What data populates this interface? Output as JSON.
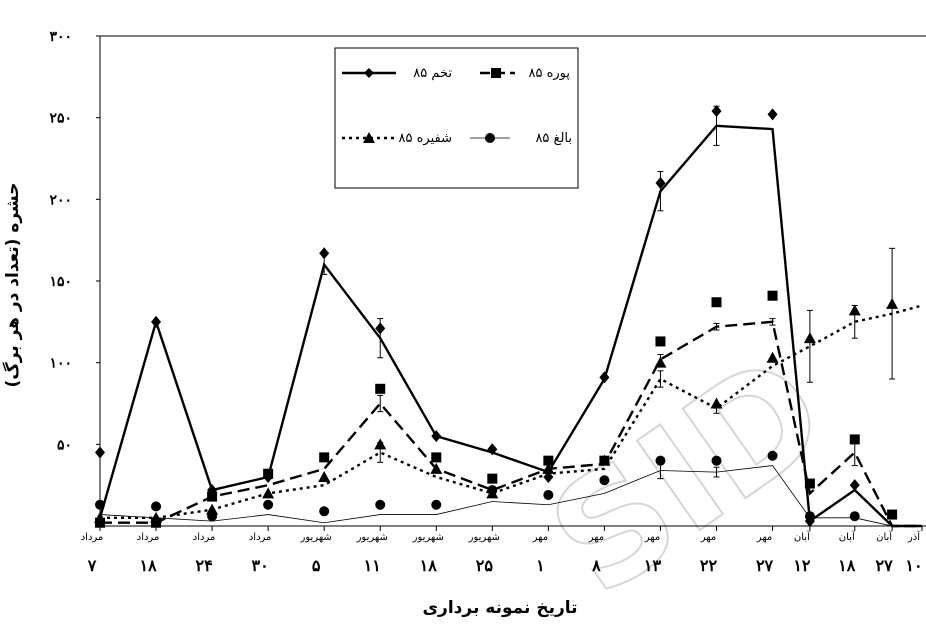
{
  "chart_data": {
    "type": "line",
    "title": "",
    "ylabel": "حشره (تعداد در هر برگ)",
    "xlabel": "تاریخ نمونه برداری",
    "ylim": [
      0,
      300
    ],
    "yticks": [
      0,
      50,
      100,
      150,
      200,
      250,
      300
    ],
    "ytick_labels": [
      "",
      "۵۰",
      "۱۰۰",
      "۱۵۰",
      "۲۰۰",
      "۲۵۰",
      "۳۰۰"
    ],
    "xlim": [
      0,
      22
    ],
    "x_tick_labels": [
      {
        "x": 0,
        "month": "مرداد",
        "day": "۷"
      },
      {
        "x": 1.5,
        "month": "مرداد",
        "day": "۱۸"
      },
      {
        "x": 3,
        "month": "مرداد",
        "day": "۲۴"
      },
      {
        "x": 4.5,
        "month": "مرداد",
        "day": "۳۰"
      },
      {
        "x": 6,
        "month": "شهریور",
        "day": "۵"
      },
      {
        "x": 7.5,
        "month": "شهریور",
        "day": "۱۱"
      },
      {
        "x": 9,
        "month": "شهریور",
        "day": "۱۸"
      },
      {
        "x": 10.5,
        "month": "شهریور",
        "day": "۲۵"
      },
      {
        "x": 12,
        "month": "مهر",
        "day": "۱"
      },
      {
        "x": 13.5,
        "month": "مهر",
        "day": "۸"
      },
      {
        "x": 15,
        "month": "مهر",
        "day": "۱۳"
      },
      {
        "x": 16.5,
        "month": "مهر",
        "day": "۲۲"
      },
      {
        "x": 18,
        "month": "مهر",
        "day": "۲۷"
      },
      {
        "x": 19,
        "month": "آبان",
        "day": "۱۲"
      },
      {
        "x": 20.2,
        "month": "آبان",
        "day": "۱۸"
      },
      {
        "x": 21.2,
        "month": "آبان",
        "day": "۲۷"
      },
      {
        "x": 22,
        "month": "آذر",
        "day": "۱۰"
      }
    ],
    "series": [
      {
        "name": "تخم ۸۵",
        "line": "solid",
        "marker": "diamond",
        "color": "#000000",
        "x": [
          0,
          1.5,
          3,
          4.5,
          6,
          7.5,
          9,
          10.5,
          12,
          13.5,
          15,
          16.5,
          18,
          19,
          20.2,
          21.2,
          22
        ],
        "points": [
          45,
          125,
          22,
          30,
          167,
          121,
          55,
          47,
          30,
          91,
          210,
          254,
          252,
          3,
          25,
          0,
          0
        ],
        "line_values": [
          5,
          125,
          22,
          30,
          160,
          115,
          55,
          45,
          33,
          90,
          205,
          245,
          243,
          3,
          22,
          0,
          0
        ],
        "errors": [
          0,
          0,
          0,
          0,
          6,
          12,
          0,
          0,
          0,
          0,
          12,
          12,
          0,
          0,
          0,
          0,
          0
        ]
      },
      {
        "name": "پوره ۸۵",
        "line": "dashed",
        "marker": "square",
        "color": "#000000",
        "x": [
          0,
          1.5,
          3,
          4.5,
          6,
          7.5,
          9,
          10.5,
          12,
          13.5,
          15,
          16.5,
          18,
          19,
          20.2,
          21.2,
          22
        ],
        "points": [
          2,
          2,
          18,
          32,
          42,
          84,
          42,
          29,
          40,
          40,
          113,
          137,
          141,
          26,
          53,
          7,
          0
        ],
        "line_values": [
          2,
          2,
          18,
          25,
          35,
          75,
          35,
          22,
          35,
          38,
          102,
          122,
          125,
          20,
          45,
          0,
          0
        ],
        "errors": [
          0,
          0,
          0,
          0,
          0,
          5,
          0,
          0,
          0,
          0,
          3,
          2,
          2,
          0,
          8,
          0,
          0
        ]
      },
      {
        "name": "شفیره ۸۵",
        "line": "dotted",
        "marker": "triangle",
        "color": "#000000",
        "x": [
          0,
          1.5,
          3,
          4.5,
          6,
          7.5,
          9,
          10.5,
          12,
          13.5,
          15,
          16.5,
          18,
          19,
          20.2,
          21.2,
          22
        ],
        "points": [
          5,
          5,
          10,
          20,
          30,
          50,
          35,
          20,
          35,
          40,
          100,
          75,
          103,
          115,
          132,
          136,
          0
        ],
        "line_values": [
          5,
          5,
          10,
          20,
          25,
          45,
          30,
          20,
          32,
          35,
          90,
          72,
          98,
          110,
          125,
          130,
          135
        ],
        "errors": [
          0,
          0,
          0,
          0,
          0,
          6,
          0,
          0,
          0,
          0,
          5,
          3,
          0,
          22,
          10,
          40,
          0
        ]
      },
      {
        "name": "بالغ ۸۵",
        "line": "thin",
        "marker": "circle",
        "color": "#000000",
        "x": [
          0,
          1.5,
          3,
          4.5,
          6,
          7.5,
          9,
          10.5,
          12,
          13.5,
          15,
          16.5,
          18,
          19,
          20.2,
          21.2,
          22
        ],
        "points": [
          13,
          12,
          6,
          13,
          9,
          13,
          13,
          22,
          19,
          28,
          40,
          40,
          43,
          6,
          6,
          0,
          0
        ],
        "line_values": [
          7,
          5,
          3,
          7,
          2,
          7,
          7,
          15,
          13,
          20,
          34,
          33,
          37,
          5,
          5,
          0,
          0
        ],
        "errors": [
          0,
          0,
          0,
          0,
          0,
          0,
          0,
          0,
          0,
          0,
          5,
          3,
          0,
          0,
          0,
          0,
          0
        ]
      }
    ],
    "legend": {
      "placement": "top-center",
      "entries": [
        "تخم ۸۵",
        "پوره ۸۵",
        "شفیره ۸۵",
        "بالغ ۸۵"
      ]
    },
    "watermark": "SID"
  }
}
